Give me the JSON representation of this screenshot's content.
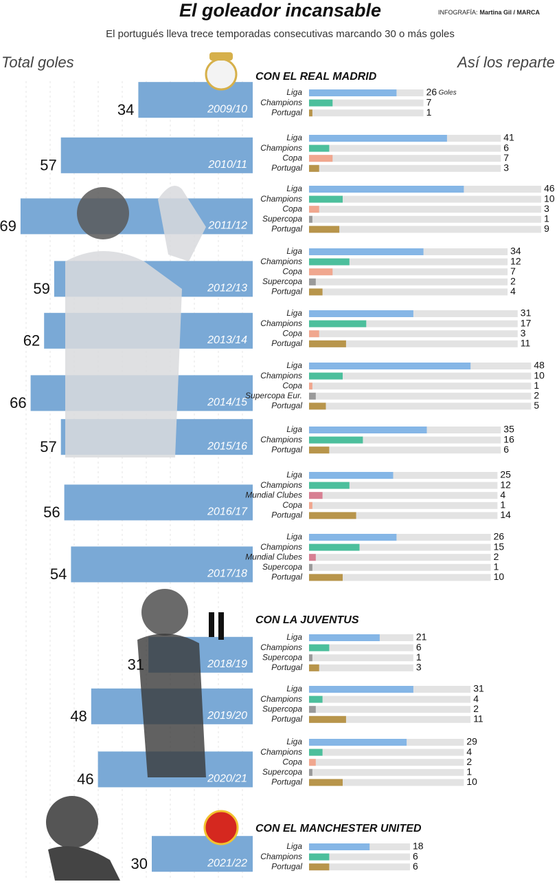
{
  "title": "El goleador incansable",
  "credit_label": "INFOGRAFÍA:",
  "credit_name": "Martina Gil / MARCA",
  "subtitle": "El portugués lleva trece temporadas consecutivas marcando 30 o más goles",
  "left_label": "Total goles",
  "right_label": "Así los reparte",
  "unit_label": "Goles",
  "colors": {
    "total": "#7aa9d6",
    "track": "#e3e3e3",
    "Liga": "#85b6e6",
    "Champions": "#4cbf9c",
    "Copa": "#f0a78f",
    "Supercopa": "#9a9a9a",
    "Supercopa Eur.": "#9a9a9a",
    "Mundial Clubes": "#d77f92",
    "Portugal": "#b8954b"
  },
  "clubs": [
    {
      "name": "CON EL REAL MADRID",
      "seasons": [
        {
          "season": "2009/10",
          "total": 34,
          "breakdown": [
            {
              "comp": "Liga",
              "goals": 26
            },
            {
              "comp": "Champions",
              "goals": 7
            },
            {
              "comp": "Portugal",
              "goals": 1
            }
          ]
        },
        {
          "season": "2010/11",
          "total": 57,
          "breakdown": [
            {
              "comp": "Liga",
              "goals": 41
            },
            {
              "comp": "Champions",
              "goals": 6
            },
            {
              "comp": "Copa",
              "goals": 7
            },
            {
              "comp": "Portugal",
              "goals": 3
            }
          ]
        },
        {
          "season": "2011/12",
          "total": 69,
          "breakdown": [
            {
              "comp": "Liga",
              "goals": 46
            },
            {
              "comp": "Champions",
              "goals": 10
            },
            {
              "comp": "Copa",
              "goals": 3
            },
            {
              "comp": "Supercopa",
              "goals": 1
            },
            {
              "comp": "Portugal",
              "goals": 9
            }
          ]
        },
        {
          "season": "2012/13",
          "total": 59,
          "breakdown": [
            {
              "comp": "Liga",
              "goals": 34
            },
            {
              "comp": "Champions",
              "goals": 12
            },
            {
              "comp": "Copa",
              "goals": 7
            },
            {
              "comp": "Supercopa",
              "goals": 2
            },
            {
              "comp": "Portugal",
              "goals": 4
            }
          ]
        },
        {
          "season": "2013/14",
          "total": 62,
          "breakdown": [
            {
              "comp": "Liga",
              "goals": 31
            },
            {
              "comp": "Champions",
              "goals": 17
            },
            {
              "comp": "Copa",
              "goals": 3
            },
            {
              "comp": "Portugal",
              "goals": 11
            }
          ]
        },
        {
          "season": "2014/15",
          "total": 66,
          "breakdown": [
            {
              "comp": "Liga",
              "goals": 48
            },
            {
              "comp": "Champions",
              "goals": 10
            },
            {
              "comp": "Copa",
              "goals": 1
            },
            {
              "comp": "Supercopa Eur.",
              "goals": 2
            },
            {
              "comp": "Portugal",
              "goals": 5
            }
          ]
        },
        {
          "season": "2015/16",
          "total": 57,
          "breakdown": [
            {
              "comp": "Liga",
              "goals": 35
            },
            {
              "comp": "Champions",
              "goals": 16
            },
            {
              "comp": "Portugal",
              "goals": 6
            }
          ]
        },
        {
          "season": "2016/17",
          "total": 56,
          "breakdown": [
            {
              "comp": "Liga",
              "goals": 25
            },
            {
              "comp": "Champions",
              "goals": 12
            },
            {
              "comp": "Mundial Clubes",
              "goals": 4
            },
            {
              "comp": "Copa",
              "goals": 1
            },
            {
              "comp": "Portugal",
              "goals": 14
            }
          ]
        },
        {
          "season": "2017/18",
          "total": 54,
          "breakdown": [
            {
              "comp": "Liga",
              "goals": 26
            },
            {
              "comp": "Champions",
              "goals": 15
            },
            {
              "comp": "Mundial Clubes",
              "goals": 2
            },
            {
              "comp": "Supercopa",
              "goals": 1
            },
            {
              "comp": "Portugal",
              "goals": 10
            }
          ]
        }
      ]
    },
    {
      "name": "CON LA JUVENTUS",
      "seasons": [
        {
          "season": "2018/19",
          "total": 31,
          "breakdown": [
            {
              "comp": "Liga",
              "goals": 21
            },
            {
              "comp": "Champions",
              "goals": 6
            },
            {
              "comp": "Supercopa",
              "goals": 1
            },
            {
              "comp": "Portugal",
              "goals": 3
            }
          ]
        },
        {
          "season": "2019/20",
          "total": 48,
          "breakdown": [
            {
              "comp": "Liga",
              "goals": 31
            },
            {
              "comp": "Champions",
              "goals": 4
            },
            {
              "comp": "Supercopa",
              "goals": 2
            },
            {
              "comp": "Portugal",
              "goals": 11
            }
          ]
        },
        {
          "season": "2020/21",
          "total": 46,
          "breakdown": [
            {
              "comp": "Liga",
              "goals": 29
            },
            {
              "comp": "Champions",
              "goals": 4
            },
            {
              "comp": "Copa",
              "goals": 2
            },
            {
              "comp": "Supercopa",
              "goals": 1
            },
            {
              "comp": "Portugal",
              "goals": 10
            }
          ]
        }
      ]
    },
    {
      "name": "CON EL MANCHESTER UNITED",
      "seasons": [
        {
          "season": "2021/22",
          "total": 30,
          "breakdown": [
            {
              "comp": "Liga",
              "goals": 18
            },
            {
              "comp": "Champions",
              "goals": 6
            },
            {
              "comp": "Portugal",
              "goals": 6
            }
          ]
        }
      ]
    }
  ]
}
